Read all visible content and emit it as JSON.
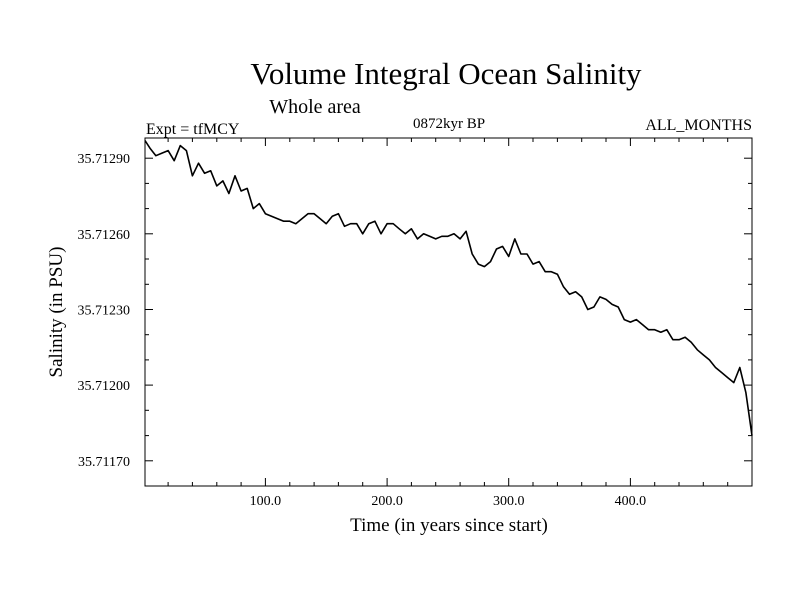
{
  "chart_data": {
    "type": "line",
    "title": "Volume Integral Ocean Salinity",
    "subtitle": "Whole area",
    "label_left": "Expt = tfMCY",
    "label_center": "0872kyr BP",
    "label_right": "ALL_MONTHS",
    "xlabel": "Time (in years since start)",
    "ylabel": "Salinity (in PSU)",
    "xlim": [
      1,
      500
    ],
    "ylim": [
      35.7116,
      35.71298
    ],
    "xticks": [
      100,
      200,
      300,
      400
    ],
    "xtick_labels": [
      "100.0",
      "200.0",
      "300.0",
      "400.0"
    ],
    "yticks": [
      35.7117,
      35.712,
      35.7123,
      35.7126,
      35.7129
    ],
    "ytick_labels": [
      "35.71170",
      "35.71200",
      "35.71230",
      "35.71260",
      "35.71290"
    ],
    "grid": false,
    "series": [
      {
        "name": "Salinity",
        "x": [
          1,
          5,
          10,
          15,
          20,
          25,
          30,
          35,
          40,
          45,
          50,
          55,
          60,
          65,
          70,
          75,
          80,
          85,
          90,
          95,
          100,
          105,
          110,
          115,
          120,
          125,
          130,
          135,
          140,
          145,
          150,
          155,
          160,
          165,
          170,
          175,
          180,
          185,
          190,
          195,
          200,
          205,
          210,
          215,
          220,
          225,
          230,
          235,
          240,
          245,
          250,
          255,
          260,
          265,
          270,
          275,
          280,
          285,
          290,
          295,
          300,
          305,
          310,
          315,
          320,
          325,
          330,
          335,
          340,
          345,
          350,
          355,
          360,
          365,
          370,
          375,
          380,
          385,
          390,
          395,
          400,
          405,
          410,
          415,
          420,
          425,
          430,
          435,
          440,
          445,
          450,
          455,
          460,
          465,
          470,
          475,
          480,
          485,
          490,
          495,
          500
        ],
        "values": [
          35.71297,
          35.71294,
          35.71291,
          35.71292,
          35.71293,
          35.71289,
          35.71295,
          35.71293,
          35.71283,
          35.71288,
          35.71284,
          35.71285,
          35.71279,
          35.71281,
          35.71276,
          35.71283,
          35.71277,
          35.71278,
          35.7127,
          35.71272,
          35.71268,
          35.71267,
          35.71266,
          35.71265,
          35.71265,
          35.71264,
          35.71266,
          35.71268,
          35.71268,
          35.71266,
          35.71264,
          35.71267,
          35.71268,
          35.71263,
          35.71264,
          35.71264,
          35.7126,
          35.71264,
          35.71265,
          35.7126,
          35.71264,
          35.71264,
          35.71262,
          35.7126,
          35.71262,
          35.71258,
          35.7126,
          35.71259,
          35.71258,
          35.71259,
          35.71259,
          35.7126,
          35.71258,
          35.71261,
          35.71252,
          35.71248,
          35.71247,
          35.71249,
          35.71254,
          35.71255,
          35.71251,
          35.71258,
          35.71252,
          35.71252,
          35.71248,
          35.71249,
          35.71245,
          35.71245,
          35.71244,
          35.71239,
          35.71236,
          35.71237,
          35.71235,
          35.7123,
          35.71231,
          35.71235,
          35.71234,
          35.71232,
          35.71231,
          35.71226,
          35.71225,
          35.71226,
          35.71224,
          35.71222,
          35.71222,
          35.71221,
          35.71222,
          35.71218,
          35.71218,
          35.71219,
          35.71217,
          35.71214,
          35.71212,
          35.7121,
          35.71207,
          35.71205,
          35.71203,
          35.71201,
          35.71207,
          35.71197,
          35.7118
        ]
      }
    ]
  }
}
